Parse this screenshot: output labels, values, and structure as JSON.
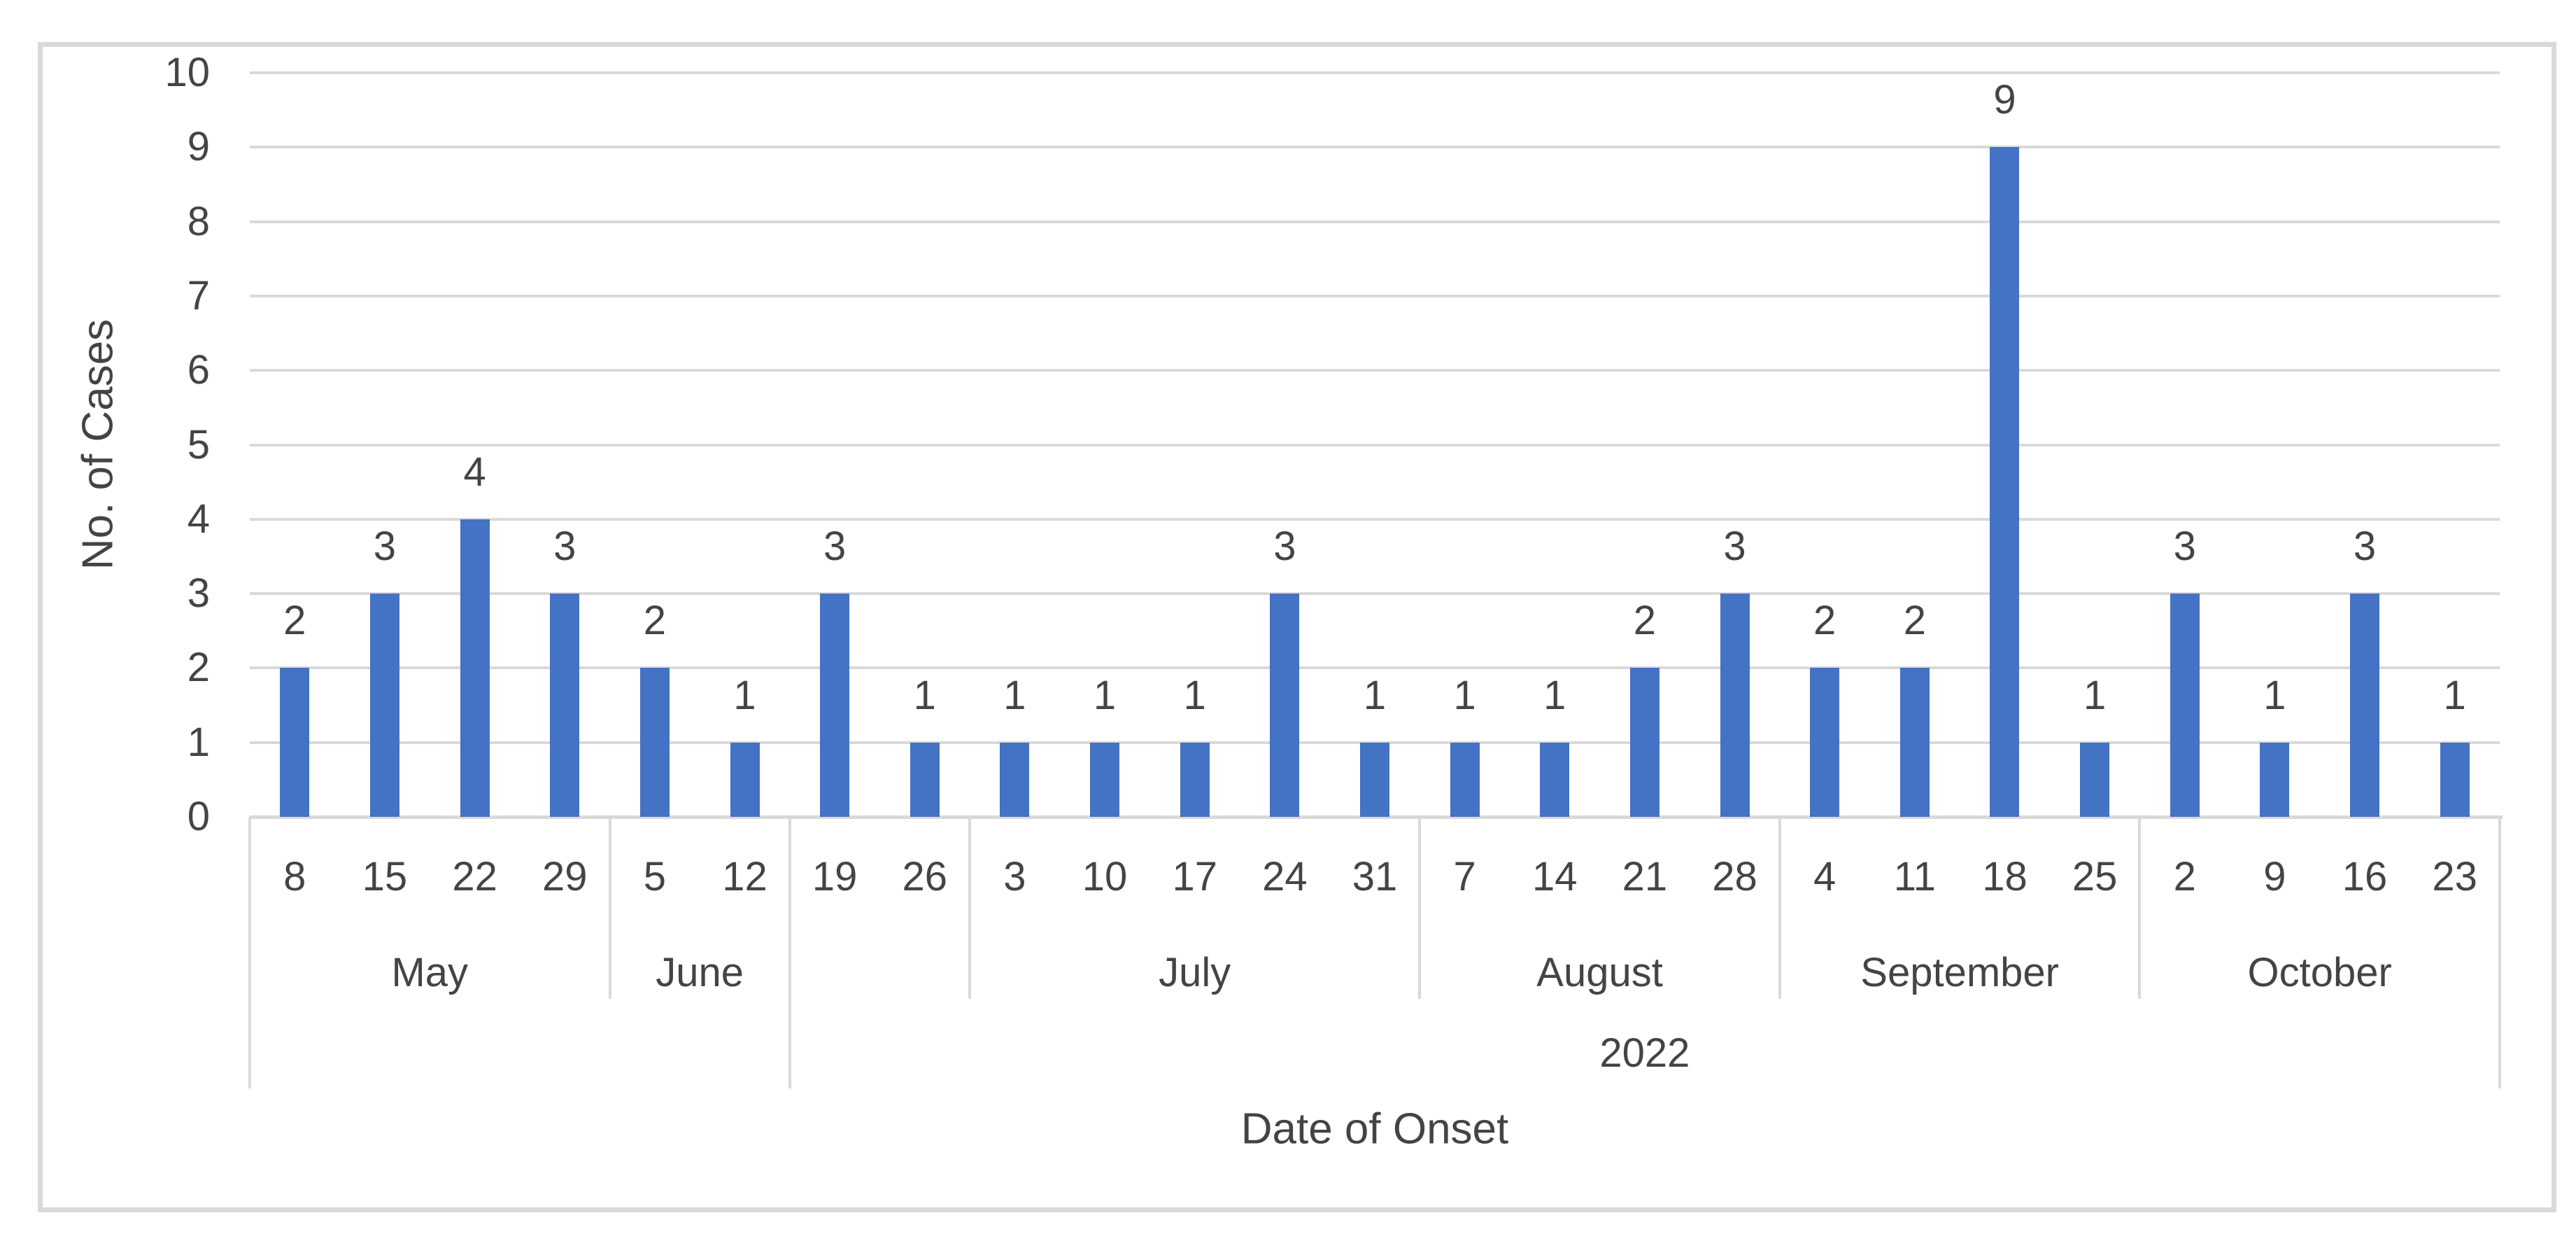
{
  "chart_data": {
    "type": "bar",
    "title": "",
    "ylabel": "No. of Cases",
    "xlabel": "Date of Onset",
    "ylim": [
      0,
      10
    ],
    "yticks": [
      0,
      1,
      2,
      3,
      4,
      5,
      6,
      7,
      8,
      9,
      10
    ],
    "grid": true,
    "legend": "none",
    "categories": [
      "8",
      "15",
      "22",
      "29",
      "5",
      "12",
      "19",
      "26",
      "3",
      "10",
      "17",
      "24",
      "31",
      "7",
      "14",
      "21",
      "28",
      "4",
      "11",
      "18",
      "25",
      "2",
      "9",
      "16",
      "23"
    ],
    "values": [
      2,
      3,
      4,
      3,
      2,
      1,
      3,
      1,
      1,
      1,
      1,
      3,
      1,
      1,
      1,
      2,
      3,
      2,
      2,
      9,
      1,
      3,
      1,
      3,
      1
    ],
    "data_labels": [
      "2",
      "3",
      "4",
      "3",
      "2",
      "1",
      "3",
      "1",
      "1",
      "1",
      "1",
      "3",
      "1",
      "1",
      "1",
      "2",
      "3",
      "2",
      "2",
      "9",
      "1",
      "3",
      "1",
      "3",
      "1"
    ],
    "month_groups": [
      {
        "label": "May",
        "count": 4
      },
      {
        "label": "June",
        "count": 2
      },
      {
        "label": "",
        "count": 2
      },
      {
        "label": "July",
        "count": 5
      },
      {
        "label": "August",
        "count": 4
      },
      {
        "label": "September",
        "count": 4
      },
      {
        "label": "October",
        "count": 4
      }
    ],
    "year_groups": [
      {
        "label": "",
        "count": 6
      },
      {
        "label": "2022",
        "count": 19
      }
    ],
    "colors": {
      "bar": "#4472c4",
      "gridline": "#d9d9d9",
      "text": "#444444"
    }
  }
}
